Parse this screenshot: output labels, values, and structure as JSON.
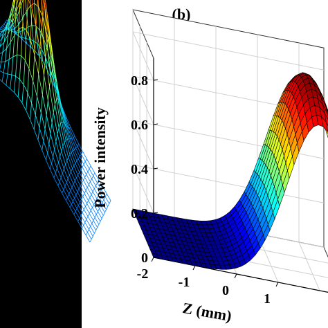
{
  "panel_label": "(b)",
  "chart_data": {
    "type": "surface",
    "title": "",
    "zlabel": "Power intensity",
    "xlabel": "Z (mm)",
    "z_ticks": [
      "0",
      "0.2",
      "0.4",
      "0.6",
      "0.8"
    ],
    "x_ticks": [
      "-2",
      "-1",
      "0",
      "1"
    ],
    "x_range": [
      -2,
      2
    ],
    "z_range": [
      0,
      0.9
    ],
    "grid": true,
    "colormap": "jet",
    "surface": {
      "function": "gaussian",
      "peak_intensity": 0.85,
      "peak_z_mm": 2.0,
      "width_mm": 1.1
    }
  }
}
